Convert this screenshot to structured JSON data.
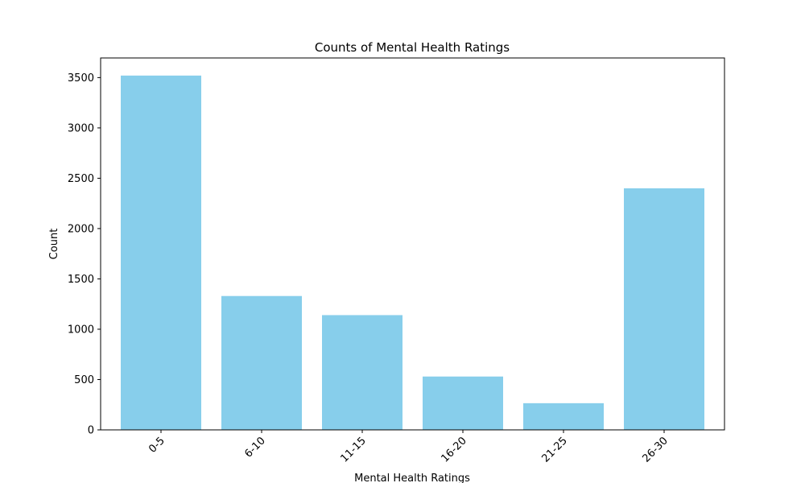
{
  "chart_data": {
    "type": "bar",
    "title": "Counts of Mental Health Ratings",
    "xlabel": "Mental Health Ratings",
    "ylabel": "Count",
    "categories": [
      "0-5",
      "6-10",
      "11-15",
      "16-20",
      "21-25",
      "26-30"
    ],
    "values": [
      3520,
      1330,
      1140,
      530,
      265,
      2400
    ],
    "yticks": [
      0,
      500,
      1000,
      1500,
      2000,
      2500,
      3000,
      3500
    ],
    "ylim": [
      0,
      3695
    ],
    "grid": false,
    "legend": "none",
    "bar_color": "#87ceeb"
  }
}
